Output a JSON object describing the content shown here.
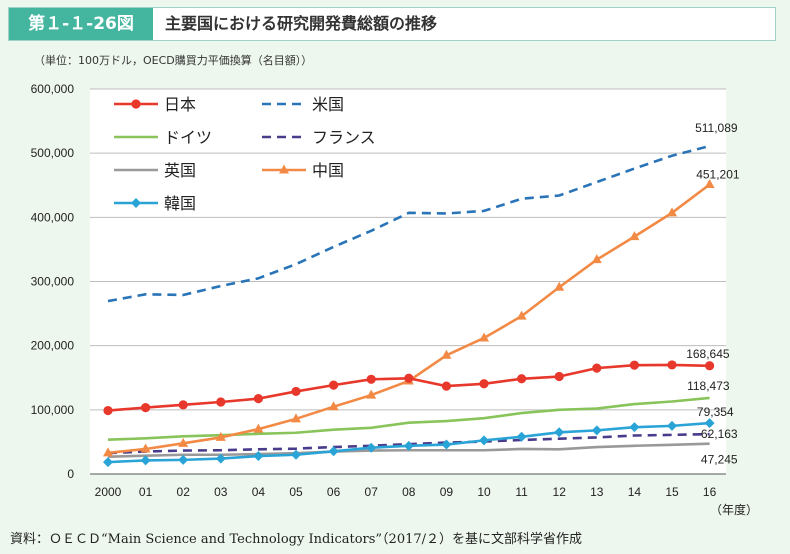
{
  "header": {
    "figure_number": "第１-１-26図",
    "title": "主要国における研究開発費総額の推移"
  },
  "unit_note": "（単位：100万ドル，OECD購買力平価換算（名目額））",
  "source_note": "資料：ＯＥＣＤ“Main Science and Technology Indicators”（2017/２）を基に文部科学省作成",
  "chart_data": {
    "type": "line",
    "x": [
      "2000",
      "01",
      "02",
      "03",
      "04",
      "05",
      "06",
      "07",
      "08",
      "09",
      "10",
      "11",
      "12",
      "13",
      "14",
      "15",
      "16"
    ],
    "x_unit_label": "（年度）",
    "ylim": [
      0,
      600000
    ],
    "y_ticks": [
      0,
      100000,
      200000,
      300000,
      400000,
      500000,
      600000
    ],
    "y_tick_labels": [
      "0",
      "100,000",
      "200,000",
      "300,000",
      "400,000",
      "500,000",
      "600,000"
    ],
    "grid": "horizontal",
    "legend_position": "top-left",
    "series": [
      {
        "name": "日本",
        "color": "#e8372b",
        "dash": "",
        "marker": "circle",
        "values": [
          98900,
          103500,
          107800,
          112200,
          117500,
          128700,
          138500,
          147600,
          149200,
          137000,
          140600,
          148400,
          151900,
          165000,
          169600,
          170000,
          168645
        ]
      },
      {
        "name": "米国",
        "color": "#2a74b8",
        "dash": "9,6",
        "marker": "none",
        "values": [
          269500,
          280000,
          279000,
          293000,
          305000,
          327000,
          354000,
          379000,
          407000,
          406000,
          410000,
          429000,
          434000,
          455000,
          476000,
          496000,
          511089
        ]
      },
      {
        "name": "ドイツ",
        "color": "#88c45a",
        "dash": "",
        "marker": "none",
        "values": [
          53500,
          55600,
          58800,
          60500,
          62700,
          64300,
          69000,
          72000,
          80000,
          82500,
          87000,
          95000,
          100000,
          102000,
          109000,
          113000,
          118473
        ]
      },
      {
        "name": "フランス",
        "color": "#4a3c8c",
        "dash": "9,6",
        "marker": "none",
        "values": [
          32500,
          35000,
          36500,
          37000,
          38500,
          39500,
          42000,
          44000,
          46500,
          49000,
          50500,
          53000,
          55000,
          57000,
          60000,
          61000,
          62163
        ]
      },
      {
        "name": "英国",
        "color": "#999999",
        "dash": "",
        "marker": "none",
        "values": [
          27000,
          28500,
          30000,
          30000,
          31000,
          32500,
          35000,
          36500,
          37000,
          37000,
          37000,
          39000,
          38500,
          42000,
          44000,
          45500,
          47245
        ]
      },
      {
        "name": "中国",
        "color": "#f28a45",
        "dash": "",
        "marker": "triangle",
        "values": [
          33000,
          39000,
          47800,
          57000,
          70000,
          86000,
          104900,
          123000,
          145000,
          185000,
          212000,
          246000,
          291000,
          334000,
          370000,
          407000,
          451201
        ]
      },
      {
        "name": "韓国",
        "color": "#2aa4d6",
        "dash": "",
        "marker": "diamond",
        "values": [
          18500,
          21200,
          22000,
          24000,
          28000,
          30000,
          35400,
          41000,
          43900,
          45900,
          52400,
          58000,
          65000,
          68000,
          73000,
          75000,
          79354
        ]
      }
    ],
    "end_labels": [
      {
        "series": "米国",
        "text": "511,089"
      },
      {
        "series": "中国",
        "text": "451,201"
      },
      {
        "series": "日本",
        "text": "168,645"
      },
      {
        "series": "ドイツ",
        "text": "118,473"
      },
      {
        "series": "韓国",
        "text": "79,354"
      },
      {
        "series": "フランス",
        "text": "62,163"
      },
      {
        "series": "英国",
        "text": "47,245"
      }
    ]
  }
}
